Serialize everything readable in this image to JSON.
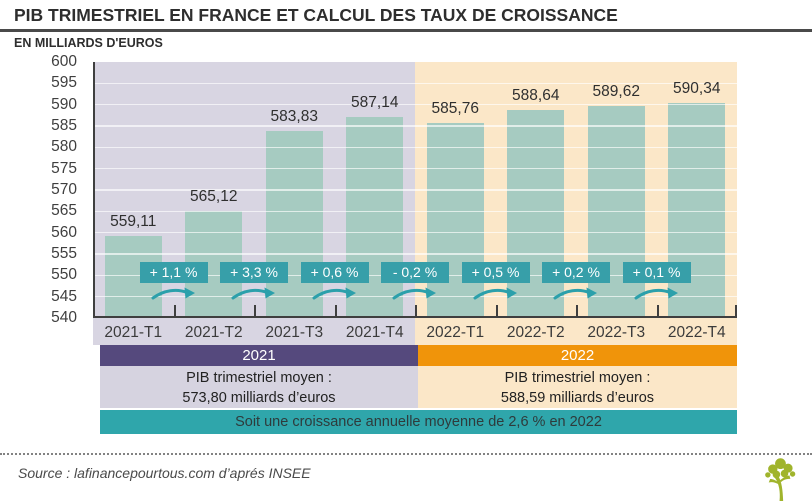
{
  "header": {
    "title": "PIB TRIMESTRIEL EN FRANCE ET CALCUL DES TAUX DE CROISSANCE",
    "subtitle": "EN MILLIARDS D'EUROS"
  },
  "chart_data": {
    "type": "bar",
    "categories": [
      "2021-T1",
      "2021-T2",
      "2021-T3",
      "2021-T4",
      "2022-T1",
      "2022-T2",
      "2022-T3",
      "2022-T4"
    ],
    "values": [
      559.11,
      565.12,
      583.83,
      587.14,
      585.76,
      588.64,
      589.62,
      590.34
    ],
    "value_labels": [
      "559,11",
      "565,12",
      "583,83",
      "587,14",
      "585,76",
      "588,64",
      "589,62",
      "590,34"
    ],
    "growth_labels": [
      "+ 1,1 %",
      "+ 3,3 %",
      "+ 0,6 %",
      "- 0,2 %",
      "+ 0,5 %",
      "+ 0,2 %",
      "+ 0,1 %"
    ],
    "title": "PIB TRIMESTRIEL EN FRANCE ET CALCUL DES TAUX DE CROISSANCE",
    "ylabel": "EN MILLIARDS D'EUROS",
    "xlabel": "",
    "ylim": [
      540,
      600
    ],
    "ytick_step": 5,
    "ytick_labels": [
      "600",
      "595",
      "590",
      "585",
      "580",
      "575",
      "570",
      "565",
      "560",
      "555",
      "550",
      "545",
      "540"
    ],
    "grid": true,
    "legend_position": "none",
    "background_groups": [
      {
        "label": "2021",
        "slots": [
          0,
          3
        ]
      },
      {
        "label": "2022",
        "slots": [
          4,
          7
        ]
      }
    ]
  },
  "bands": {
    "year_2021": {
      "label": "2021",
      "stat_line1": "PIB trimestriel moyen  :",
      "stat_line2": "573,80 milliards d’euros"
    },
    "year_2022": {
      "label": "2022",
      "stat_line1": "PIB trimestriel moyen  :",
      "stat_line2": "588,59 milliards d’euros"
    },
    "summary": "Soit une croissance annuelle moyenne de 2,6 % en 2022"
  },
  "footer": {
    "source": "Source : lafinancepourtous.com d’aprés INSEE"
  },
  "colors": {
    "bg_2021": "#d8d5e2",
    "bg_2022": "#fbe7c8",
    "stat_2021": "#d6d3e0",
    "stat_2022": "#fbe7c8",
    "bar": "#a6cbc1",
    "growth_badge": "#379fa9",
    "growth_arrow": "#2ba0ab",
    "band_2021": "#55497d",
    "band_2022": "#f0940a",
    "summary_band": "#2fa6ab",
    "axis": "#3f3f3f",
    "logo_green": "#a0b42c"
  }
}
